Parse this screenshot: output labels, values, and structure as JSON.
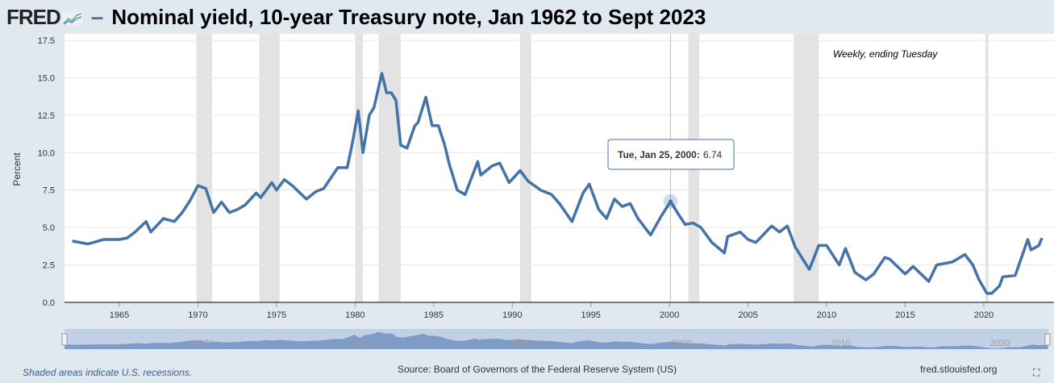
{
  "header": {
    "logo": "FRED",
    "title": "Nominal yield, 10-year Treasury note, Jan 1962 to Sept 2023"
  },
  "colors": {
    "series": "#4572a7",
    "recession": "#e3e3e3"
  },
  "chart_data": {
    "type": "line",
    "title": "Nominal yield, 10-year Treasury note, Jan 1962 to Sept 2023",
    "ylabel": "Percent",
    "xlabel": "",
    "ylim": [
      0,
      17.5
    ],
    "xlim": [
      1961.6,
      1963.0
    ],
    "yticks": [
      "0.0",
      "2.5",
      "5.0",
      "7.5",
      "10.0",
      "12.5",
      "15.0",
      "17.5"
    ],
    "xticks": [
      "1965",
      "1970",
      "1975",
      "1980",
      "1985",
      "1990",
      "1995",
      "2000",
      "2005",
      "2010",
      "2015",
      "2020"
    ],
    "navigator_ticks": [
      "1970",
      "1980",
      "1990",
      "2000",
      "2010",
      "2020"
    ],
    "annotation": "Weekly, ending Tuesday",
    "tooltip": {
      "date": "Tue, Jan 25, 2000:",
      "value": "6.74",
      "x": 2000.07
    },
    "recessions": [
      [
        1969.9,
        1970.9
      ],
      [
        1973.9,
        1975.2
      ],
      [
        1980.0,
        1980.5
      ],
      [
        1981.5,
        1982.9
      ],
      [
        1990.5,
        1991.2
      ],
      [
        2001.2,
        2001.9
      ],
      [
        2007.9,
        2009.5
      ],
      [
        2020.1,
        2020.3
      ]
    ],
    "series": [
      {
        "name": "10-year Treasury yield",
        "points": [
          [
            1962,
            4.1
          ],
          [
            1963,
            3.9
          ],
          [
            1964,
            4.2
          ],
          [
            1965,
            4.2
          ],
          [
            1965.5,
            4.3
          ],
          [
            1966,
            4.7
          ],
          [
            1966.7,
            5.4
          ],
          [
            1967,
            4.7
          ],
          [
            1967.8,
            5.6
          ],
          [
            1968.5,
            5.4
          ],
          [
            1969,
            6.0
          ],
          [
            1969.5,
            6.8
          ],
          [
            1970,
            7.8
          ],
          [
            1970.5,
            7.6
          ],
          [
            1971,
            6.0
          ],
          [
            1971.5,
            6.7
          ],
          [
            1972,
            6.0
          ],
          [
            1972.5,
            6.2
          ],
          [
            1973,
            6.5
          ],
          [
            1973.7,
            7.3
          ],
          [
            1974,
            7.0
          ],
          [
            1974.7,
            8.0
          ],
          [
            1975,
            7.5
          ],
          [
            1975.5,
            8.2
          ],
          [
            1976,
            7.8
          ],
          [
            1976.9,
            6.9
          ],
          [
            1977.5,
            7.4
          ],
          [
            1978,
            7.6
          ],
          [
            1978.9,
            9.0
          ],
          [
            1979.5,
            9.0
          ],
          [
            1979.8,
            10.5
          ],
          [
            1980.2,
            12.8
          ],
          [
            1980.5,
            10.0
          ],
          [
            1980.9,
            12.5
          ],
          [
            1981.2,
            13.0
          ],
          [
            1981.7,
            15.3
          ],
          [
            1982,
            14.0
          ],
          [
            1982.3,
            14.0
          ],
          [
            1982.6,
            13.5
          ],
          [
            1982.9,
            10.5
          ],
          [
            1983.3,
            10.3
          ],
          [
            1983.8,
            11.8
          ],
          [
            1984,
            12.0
          ],
          [
            1984.5,
            13.7
          ],
          [
            1984.9,
            11.8
          ],
          [
            1985.3,
            11.8
          ],
          [
            1985.7,
            10.5
          ],
          [
            1986,
            9.2
          ],
          [
            1986.5,
            7.5
          ],
          [
            1987,
            7.2
          ],
          [
            1987.8,
            9.4
          ],
          [
            1988,
            8.5
          ],
          [
            1988.7,
            9.1
          ],
          [
            1989.2,
            9.3
          ],
          [
            1989.8,
            8.0
          ],
          [
            1990.5,
            8.8
          ],
          [
            1991,
            8.1
          ],
          [
            1991.8,
            7.5
          ],
          [
            1992.5,
            7.2
          ],
          [
            1993,
            6.6
          ],
          [
            1993.8,
            5.4
          ],
          [
            1994.5,
            7.3
          ],
          [
            1994.9,
            7.9
          ],
          [
            1995.5,
            6.2
          ],
          [
            1996,
            5.6
          ],
          [
            1996.5,
            6.9
          ],
          [
            1997,
            6.4
          ],
          [
            1997.5,
            6.6
          ],
          [
            1998,
            5.6
          ],
          [
            1998.8,
            4.5
          ],
          [
            1999.5,
            5.8
          ],
          [
            2000.07,
            6.74
          ],
          [
            2000.5,
            6.0
          ],
          [
            2001,
            5.2
          ],
          [
            2001.5,
            5.3
          ],
          [
            2002,
            5.0
          ],
          [
            2002.7,
            4.0
          ],
          [
            2003.5,
            3.3
          ],
          [
            2003.7,
            4.4
          ],
          [
            2004.5,
            4.7
          ],
          [
            2005,
            4.2
          ],
          [
            2005.5,
            4.0
          ],
          [
            2006.5,
            5.1
          ],
          [
            2007,
            4.7
          ],
          [
            2007.5,
            5.1
          ],
          [
            2008,
            3.7
          ],
          [
            2008.9,
            2.2
          ],
          [
            2009.5,
            3.8
          ],
          [
            2010,
            3.8
          ],
          [
            2010.8,
            2.5
          ],
          [
            2011.2,
            3.6
          ],
          [
            2011.8,
            2.0
          ],
          [
            2012.5,
            1.5
          ],
          [
            2013,
            1.9
          ],
          [
            2013.7,
            3.0
          ],
          [
            2014,
            2.9
          ],
          [
            2015,
            1.9
          ],
          [
            2015.5,
            2.4
          ],
          [
            2016.5,
            1.4
          ],
          [
            2017,
            2.5
          ],
          [
            2018,
            2.7
          ],
          [
            2018.8,
            3.2
          ],
          [
            2019.3,
            2.5
          ],
          [
            2019.7,
            1.5
          ],
          [
            2020.2,
            0.6
          ],
          [
            2020.5,
            0.6
          ],
          [
            2021,
            1.1
          ],
          [
            2021.2,
            1.7
          ],
          [
            2022,
            1.8
          ],
          [
            2022.8,
            4.2
          ],
          [
            2023,
            3.5
          ],
          [
            2023.5,
            3.8
          ],
          [
            2023.7,
            4.3
          ]
        ]
      }
    ]
  },
  "footer": {
    "note": "Shaded areas indicate U.S. recessions.",
    "source": "Source: Board of Governors of the Federal Reserve System (US)",
    "url": "fred.stlouisfed.org",
    "fullscreen": "⛶"
  }
}
